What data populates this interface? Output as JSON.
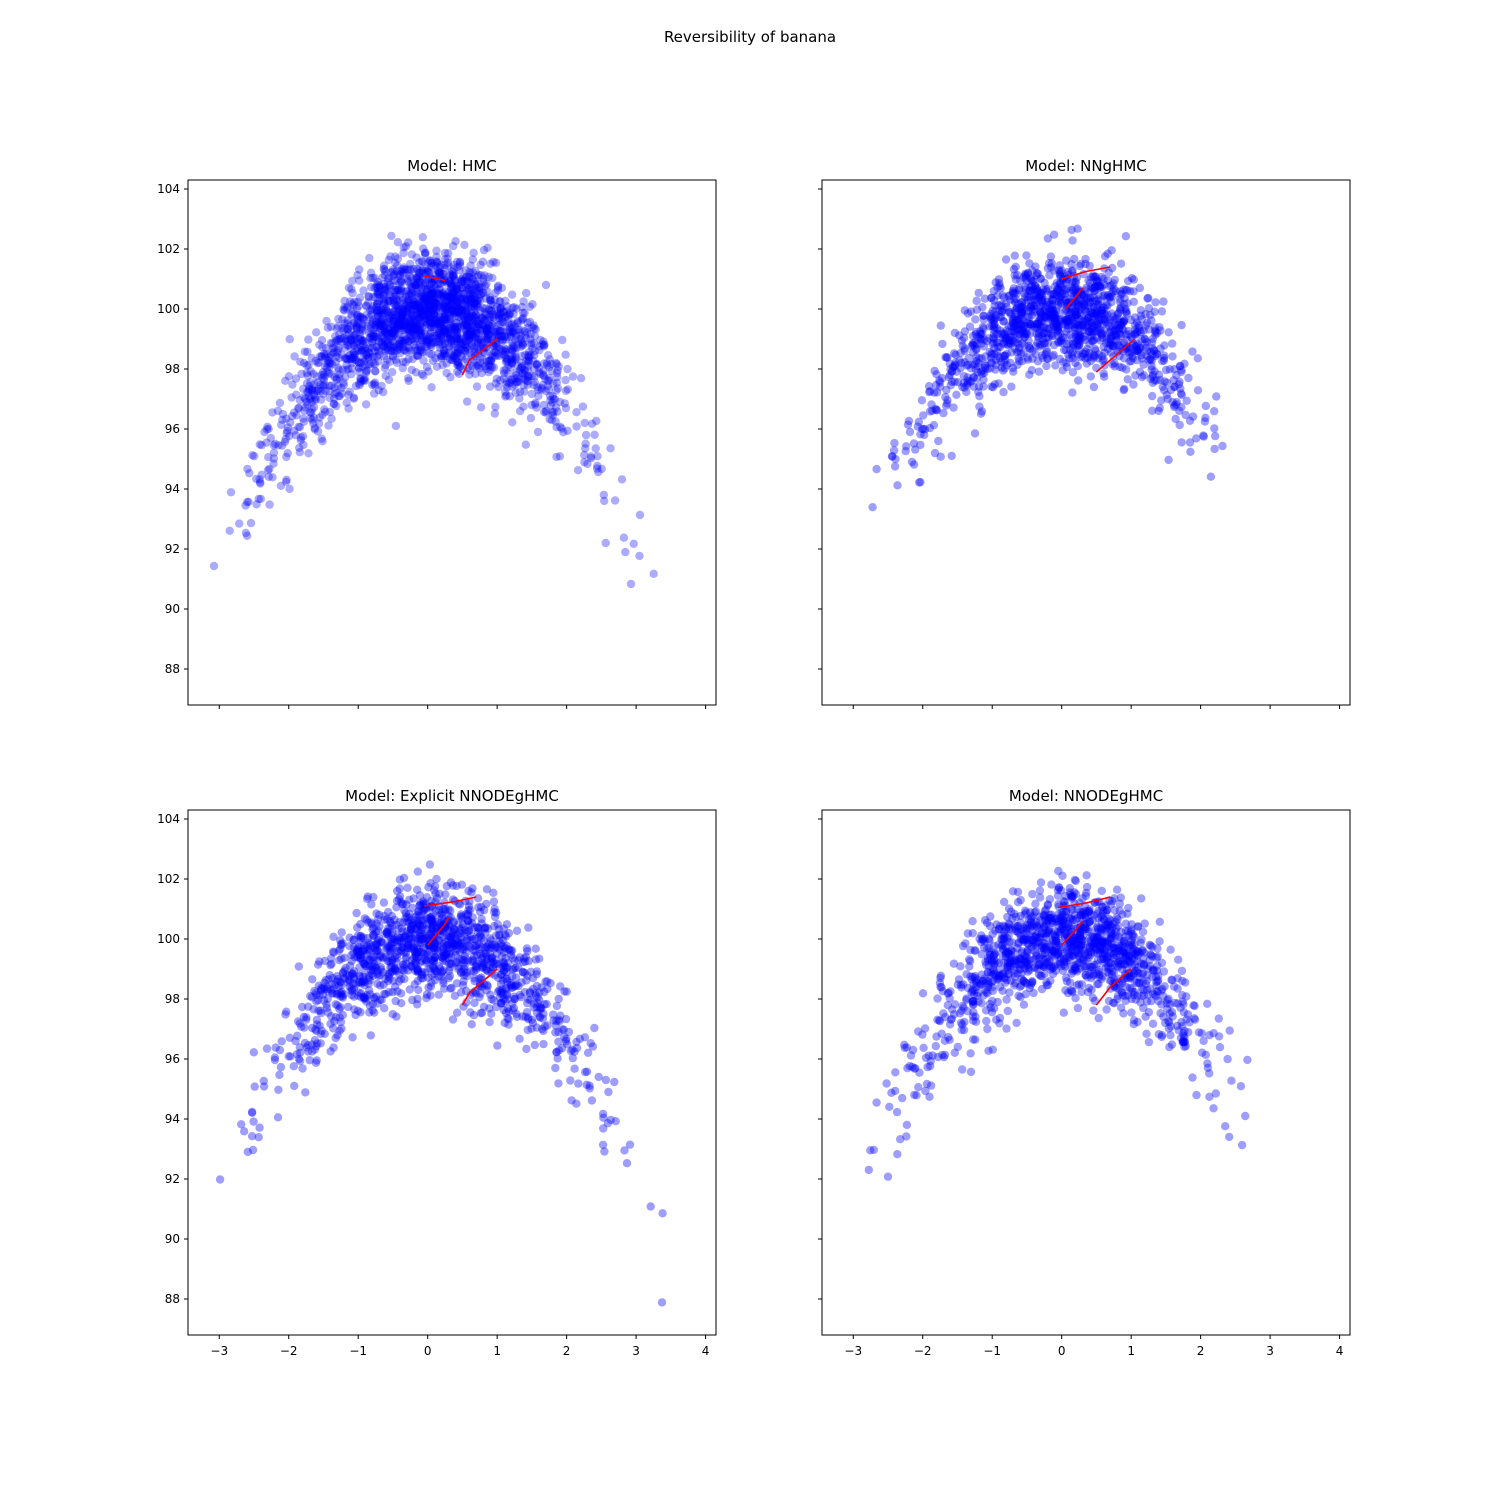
{
  "suptitle": "Reversibility of banana",
  "colors": {
    "points": "#0000ff",
    "trajectories": "#ff0000",
    "axes": "#000000",
    "background": "#ffffff"
  },
  "chart_data": [
    {
      "type": "scatter",
      "title": "Model: HMC",
      "xlim": [
        -3.45,
        4.15
      ],
      "ylim": [
        86.8,
        104.3
      ],
      "xticks": [
        -3,
        -2,
        -1,
        0,
        1,
        2,
        3,
        4
      ],
      "yticks": [
        88,
        90,
        92,
        94,
        96,
        98,
        100,
        102,
        104
      ],
      "show_xticklabels": false,
      "show_yticklabels": true,
      "point_alpha": 0.33,
      "cloud": {
        "n": 2200,
        "x_mean": 0.05,
        "x_sd": 1.0,
        "x_min": -3.1,
        "x_max": 3.5,
        "peak": 100.0,
        "curvature": 0.9,
        "noise_sd": 0.95
      },
      "trajectories": [
        {
          "x": [
            -0.05,
            0.25
          ],
          "y": [
            101.1,
            100.95
          ]
        },
        {
          "x": [
            0.5,
            0.6,
            1.0
          ],
          "y": [
            97.8,
            98.3,
            99.0
          ]
        }
      ]
    },
    {
      "type": "scatter",
      "title": "Model: NNgHMC",
      "xlim": [
        -3.45,
        4.15
      ],
      "ylim": [
        86.8,
        104.3
      ],
      "xticks": [
        -3,
        -2,
        -1,
        0,
        1,
        2,
        3,
        4
      ],
      "yticks": [
        88,
        90,
        92,
        94,
        96,
        98,
        100,
        102,
        104
      ],
      "show_xticklabels": false,
      "show_yticklabels": false,
      "point_alpha": 0.38,
      "cloud": {
        "n": 1300,
        "x_mean": 0.0,
        "x_sd": 0.95,
        "x_min": -2.8,
        "x_max": 2.6,
        "peak": 100.0,
        "curvature": 0.9,
        "noise_sd": 0.9
      },
      "trajectories": [
        {
          "x": [
            0.0,
            0.35,
            0.7
          ],
          "y": [
            101.0,
            101.25,
            101.4
          ]
        },
        {
          "x": [
            0.05,
            0.2,
            0.3
          ],
          "y": [
            100.0,
            100.4,
            100.7
          ]
        },
        {
          "x": [
            0.5,
            0.75,
            1.05
          ],
          "y": [
            97.9,
            98.4,
            99.0
          ]
        }
      ]
    },
    {
      "type": "scatter",
      "title": "Model: Explicit NNODEgHMC",
      "xlim": [
        -3.45,
        4.15
      ],
      "ylim": [
        86.8,
        104.3
      ],
      "xticks": [
        -3,
        -2,
        -1,
        0,
        1,
        2,
        3,
        4
      ],
      "yticks": [
        88,
        90,
        92,
        94,
        96,
        98,
        100,
        102,
        104
      ],
      "show_xticklabels": true,
      "show_yticklabels": true,
      "point_alpha": 0.38,
      "cloud": {
        "n": 1300,
        "x_mean": 0.0,
        "x_sd": 1.05,
        "x_min": -3.0,
        "x_max": 3.8,
        "peak": 100.0,
        "curvature": 0.9,
        "noise_sd": 0.9
      },
      "trajectories": [
        {
          "x": [
            -0.05,
            0.4,
            0.7
          ],
          "y": [
            101.1,
            101.25,
            101.4
          ]
        },
        {
          "x": [
            0.0,
            0.25,
            0.3
          ],
          "y": [
            99.8,
            100.5,
            100.7
          ]
        },
        {
          "x": [
            0.5,
            0.6,
            1.0
          ],
          "y": [
            97.8,
            98.2,
            99.0
          ]
        }
      ]
    },
    {
      "type": "scatter",
      "title": "Model: NNODEgHMC",
      "xlim": [
        -3.45,
        4.15
      ],
      "ylim": [
        86.8,
        104.3
      ],
      "xticks": [
        -3,
        -2,
        -1,
        0,
        1,
        2,
        3,
        4
      ],
      "yticks": [
        88,
        90,
        92,
        94,
        96,
        98,
        100,
        102,
        104
      ],
      "show_xticklabels": true,
      "show_yticklabels": false,
      "point_alpha": 0.38,
      "cloud": {
        "n": 1300,
        "x_mean": 0.05,
        "x_sd": 1.0,
        "x_min": -2.8,
        "x_max": 2.9,
        "peak": 100.0,
        "curvature": 0.9,
        "noise_sd": 0.9
      },
      "trajectories": [
        {
          "x": [
            -0.05,
            0.35,
            0.7
          ],
          "y": [
            101.05,
            101.2,
            101.4
          ]
        },
        {
          "x": [
            0.0,
            0.2,
            0.3
          ],
          "y": [
            99.8,
            100.3,
            100.6
          ]
        },
        {
          "x": [
            0.5,
            0.7,
            1.0
          ],
          "y": [
            97.8,
            98.4,
            99.0
          ]
        }
      ]
    }
  ]
}
